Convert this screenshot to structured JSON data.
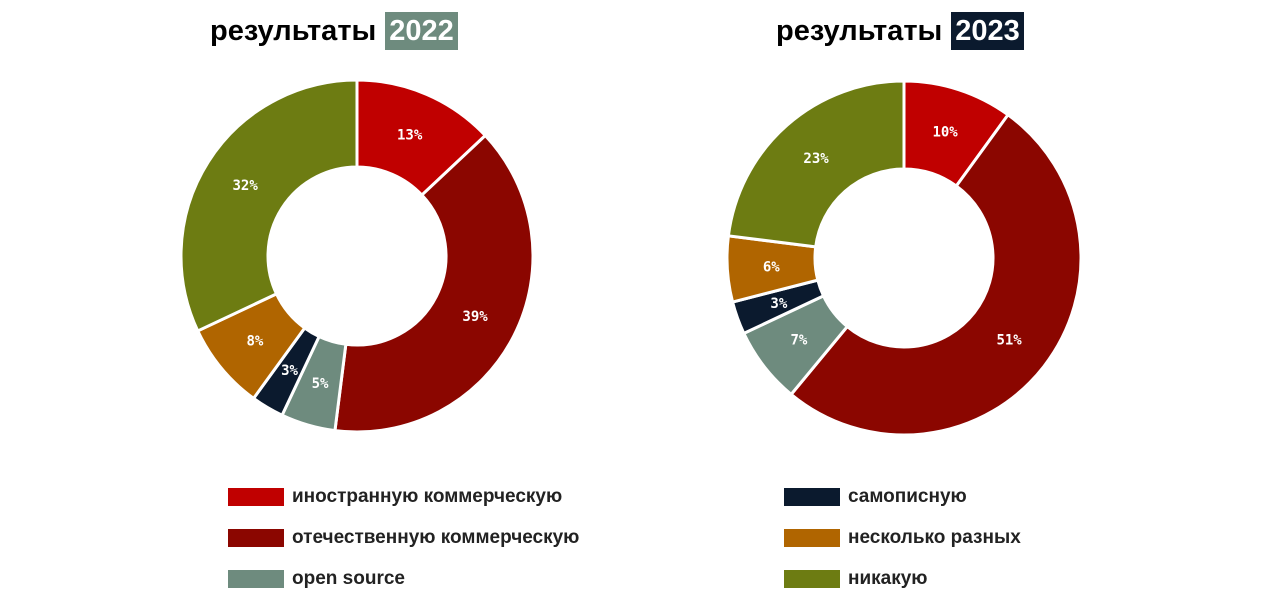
{
  "chart_data": [
    {
      "type": "pie",
      "variant": "donut",
      "title": "результаты",
      "year": "2022",
      "year_badge_color": "#6e8b7e",
      "categories": [
        "иностранную коммерческую",
        "отечественную коммерческую",
        "open source",
        "самописную",
        "несколько разных",
        "никакую"
      ],
      "values": [
        13,
        39,
        5,
        3,
        8,
        32
      ],
      "labels": [
        "13%",
        "39%",
        "5%",
        "3%",
        "8%",
        "32%"
      ]
    },
    {
      "type": "pie",
      "variant": "donut",
      "title": "результаты",
      "year": "2023",
      "year_badge_color": "#0b1a2e",
      "categories": [
        "иностранную коммерческую",
        "отечественную коммерческую",
        "open source",
        "самописную",
        "несколько разных",
        "никакую"
      ],
      "values": [
        10,
        51,
        7,
        3,
        6,
        23
      ],
      "labels": [
        "10%",
        "51%",
        "7%",
        "3%",
        "6%",
        "23%"
      ]
    }
  ],
  "legend": {
    "placement": "bottom",
    "items": [
      {
        "label": "иностранную коммерческую",
        "color": "#c00000"
      },
      {
        "label": "отечественную коммерческую",
        "color": "#8b0600"
      },
      {
        "label": "open source",
        "color": "#6e8b7e"
      },
      {
        "label": "самописную",
        "color": "#0b1a2e"
      },
      {
        "label": "несколько разных",
        "color": "#b06500"
      },
      {
        "label": "никакую",
        "color": "#6d7c12"
      }
    ]
  }
}
